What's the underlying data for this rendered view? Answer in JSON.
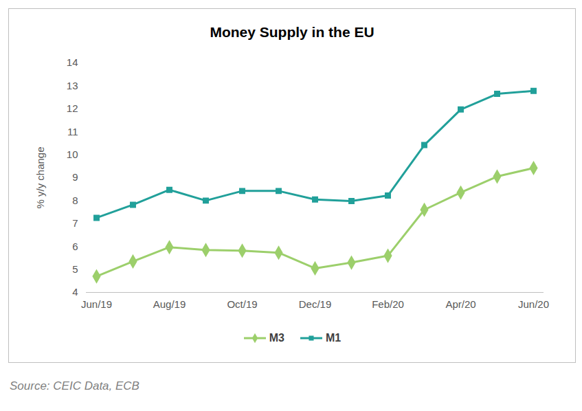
{
  "chart_data": {
    "type": "line",
    "title": "Money Supply in the EU",
    "caption": "Source: CEIC Data, ECB",
    "y_label": "% y/y change",
    "categories": [
      "Jun/19",
      null,
      "Aug/19",
      null,
      "Oct/19",
      null,
      "Dec/19",
      null,
      "Feb/20",
      null,
      "Apr/20",
      null,
      "Jun/20"
    ],
    "series": [
      {
        "name": "M3",
        "color": "#9ccf6b",
        "marker": "diamond",
        "values": [
          4.7,
          5.35,
          5.97,
          5.85,
          5.82,
          5.73,
          5.05,
          5.3,
          5.6,
          7.6,
          8.35,
          9.05,
          9.42
        ]
      },
      {
        "name": "M1",
        "color": "#21a09a",
        "marker": "square",
        "values": [
          7.25,
          7.82,
          8.47,
          8.0,
          8.42,
          8.42,
          8.05,
          7.98,
          8.22,
          10.42,
          11.97,
          12.65,
          12.78
        ]
      }
    ],
    "ylim": [
      4,
      14
    ],
    "yticks": [
      4,
      5,
      6,
      7,
      8,
      9,
      10,
      11,
      12,
      13,
      14
    ],
    "grid": false,
    "legend": "bottom"
  }
}
